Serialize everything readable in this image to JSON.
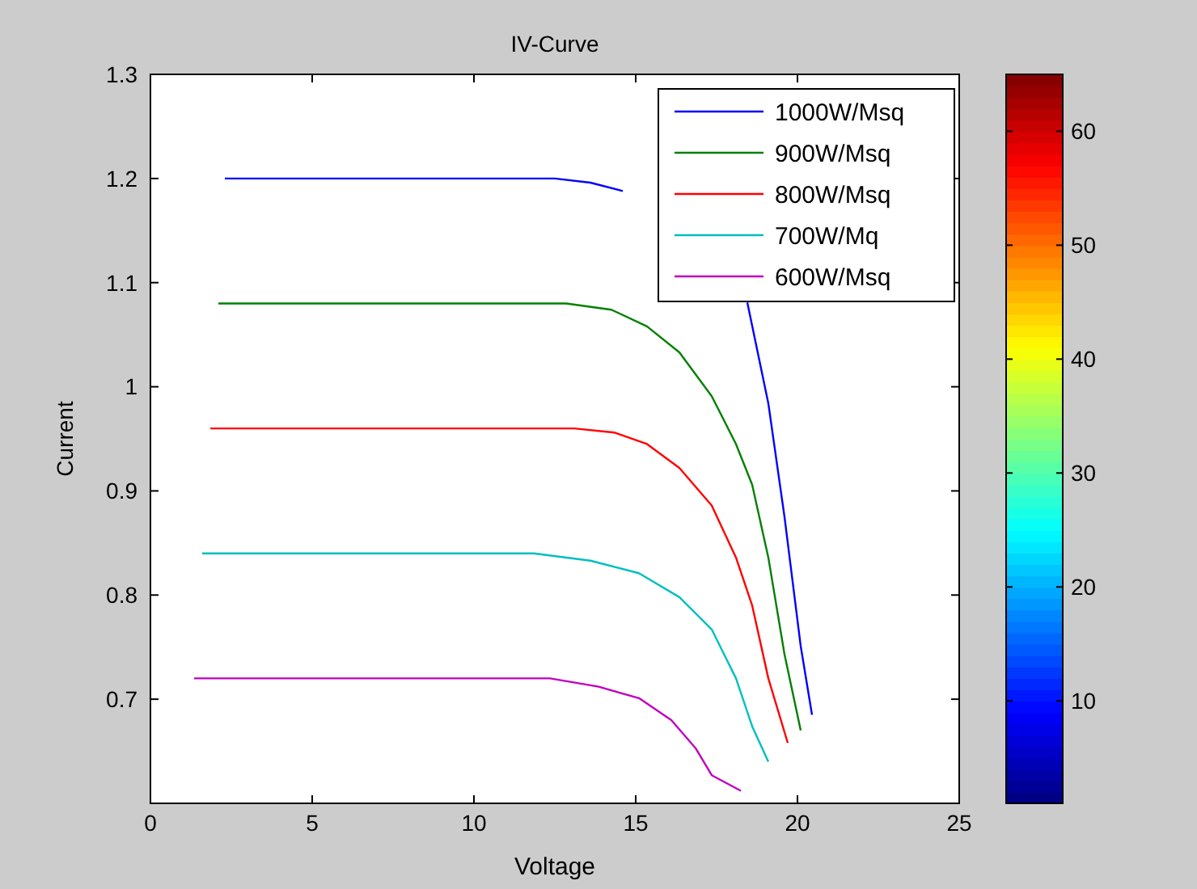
{
  "chart_data": {
    "type": "line",
    "title": "IV-Curve",
    "xlabel": "Voltage",
    "ylabel": "Current",
    "xlim": [
      0,
      25
    ],
    "xticks": [
      0,
      5,
      10,
      15,
      20,
      25
    ],
    "ylim": [
      0.6,
      1.3
    ],
    "yticks": [
      0.7,
      0.8,
      0.9,
      1,
      1.1,
      1.2,
      1.3
    ],
    "grid": false,
    "legend": "top right",
    "line_style": "solid",
    "marker": "none",
    "clim": [
      1,
      65
    ],
    "cticks": [
      10,
      20,
      30,
      40,
      50,
      60
    ],
    "series": [
      {
        "name": "1000W/Msq",
        "color": "#0000ff",
        "x": [
          2.3,
          12.5,
          13.6,
          14.6,
          15.8,
          18.45,
          19.1,
          19.6,
          20.1,
          20.45
        ],
        "values": [
          1.2,
          1.2,
          1.196,
          1.188,
          null,
          1.081,
          0.984,
          0.875,
          0.751,
          0.685
        ]
      },
      {
        "name": "900W/Msq",
        "color": "#008000",
        "x": [
          2.1,
          12.85,
          14.25,
          15.35,
          16.35,
          17.35,
          18.1,
          18.6,
          19.1,
          19.6,
          20.1
        ],
        "values": [
          1.08,
          1.08,
          1.074,
          1.058,
          1.033,
          0.991,
          0.945,
          0.906,
          0.836,
          0.743,
          0.67
        ]
      },
      {
        "name": "800W/Msq",
        "color": "#ff0000",
        "x": [
          1.85,
          13.1,
          14.35,
          15.35,
          16.35,
          17.35,
          18.1,
          18.6,
          19.1,
          19.7
        ],
        "values": [
          0.96,
          0.96,
          0.956,
          0.945,
          0.922,
          0.886,
          0.836,
          0.79,
          0.72,
          0.658
        ]
      },
      {
        "name": "700W/Mq",
        "color": "#00bfbf",
        "x": [
          1.6,
          11.85,
          13.6,
          15.1,
          16.35,
          17.35,
          18.1,
          18.6,
          19.1
        ],
        "values": [
          0.84,
          0.84,
          0.833,
          0.821,
          0.798,
          0.767,
          0.72,
          0.674,
          0.64
        ]
      },
      {
        "name": "600W/Msq",
        "color": "#bf00bf",
        "x": [
          1.35,
          12.35,
          13.85,
          15.1,
          16.1,
          16.85,
          17.35,
          18.25
        ],
        "values": [
          0.72,
          0.72,
          0.712,
          0.701,
          0.68,
          0.653,
          0.627,
          0.612
        ]
      }
    ]
  }
}
